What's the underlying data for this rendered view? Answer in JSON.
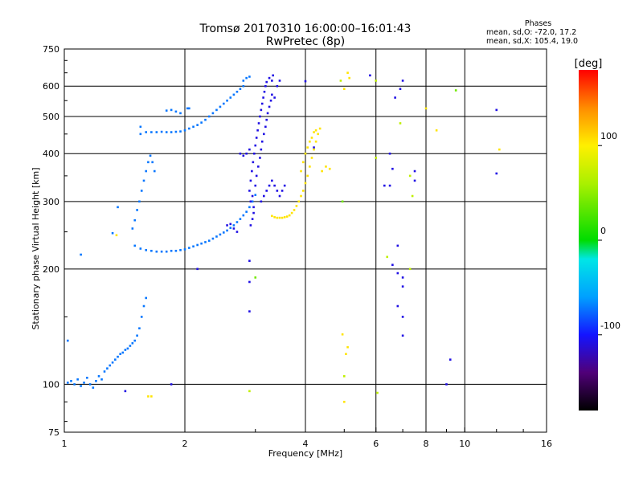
{
  "header": {
    "title_line1": "Tromsø 20170310 16:00:00–16:01:43",
    "title_line2": "RwPretec (8p)"
  },
  "phases": {
    "heading": "Phases",
    "line_o": "mean, sd,O: -72.0, 17.2",
    "line_x": "mean, sd,X: 105.4, 19.0"
  },
  "chart_data": {
    "type": "scatter",
    "xlabel": "Frequency [MHz]",
    "ylabel": "Stationary phase Virtual Height [km]",
    "x_scale": "log",
    "y_scale": "log",
    "xlim": [
      1,
      16
    ],
    "ylim": [
      75,
      750
    ],
    "x_ticks": [
      1,
      2,
      4,
      6,
      8,
      10,
      16
    ],
    "x_tick_labels": [
      "1",
      "2",
      "4",
      "6",
      "8",
      "10",
      "16"
    ],
    "y_ticks": [
      75,
      100,
      200,
      300,
      400,
      500,
      600,
      750
    ],
    "y_tick_labels": [
      "75",
      "100",
      "200",
      "300",
      "400",
      "500",
      "600",
      "750"
    ],
    "grid": true,
    "colorbar": {
      "label": "[deg]",
      "range": [
        -180,
        180
      ],
      "ticks": [
        100,
        0,
        -100
      ],
      "tick_labels": [
        "100",
        "0",
        "-100"
      ]
    },
    "series": [
      {
        "color_phase": -72,
        "points": [
          [
            1.02,
            101
          ],
          [
            1.04,
            102
          ],
          [
            1.06,
            100
          ],
          [
            1.08,
            103
          ],
          [
            1.1,
            99
          ],
          [
            1.12,
            101
          ],
          [
            1.14,
            104
          ],
          [
            1.16,
            100
          ],
          [
            1.18,
            98
          ],
          [
            1.2,
            102
          ],
          [
            1.22,
            105
          ],
          [
            1.24,
            103
          ],
          [
            1.26,
            108
          ],
          [
            1.28,
            110
          ],
          [
            1.3,
            112
          ],
          [
            1.32,
            114
          ],
          [
            1.34,
            116
          ],
          [
            1.36,
            118
          ],
          [
            1.38,
            120
          ],
          [
            1.4,
            121
          ],
          [
            1.42,
            123
          ],
          [
            1.44,
            124
          ],
          [
            1.46,
            126
          ],
          [
            1.48,
            128
          ],
          [
            1.5,
            130
          ],
          [
            1.52,
            134
          ],
          [
            1.54,
            140
          ],
          [
            1.56,
            150
          ],
          [
            1.58,
            160
          ],
          [
            1.6,
            168
          ],
          [
            1.02,
            130
          ],
          [
            1.1,
            218
          ],
          [
            1.32,
            248
          ],
          [
            1.36,
            290
          ],
          [
            1.5,
            230
          ],
          [
            1.55,
            226
          ],
          [
            1.6,
            224
          ],
          [
            1.65,
            223
          ],
          [
            1.7,
            222
          ],
          [
            1.75,
            222
          ],
          [
            1.8,
            222
          ],
          [
            1.85,
            223
          ],
          [
            1.9,
            223
          ],
          [
            1.95,
            224
          ],
          [
            2.0,
            225
          ],
          [
            2.05,
            227
          ],
          [
            2.1,
            229
          ],
          [
            2.15,
            231
          ],
          [
            2.2,
            233
          ],
          [
            2.25,
            235
          ],
          [
            2.3,
            237
          ],
          [
            2.35,
            240
          ],
          [
            2.4,
            243
          ],
          [
            2.45,
            246
          ],
          [
            2.5,
            249
          ],
          [
            2.55,
            252
          ],
          [
            2.6,
            256
          ],
          [
            2.65,
            260
          ],
          [
            2.7,
            265
          ],
          [
            2.75,
            270
          ],
          [
            2.8,
            276
          ],
          [
            2.85,
            282
          ],
          [
            2.9,
            290
          ],
          [
            2.95,
            300
          ],
          [
            3.0,
            312
          ],
          [
            1.48,
            255
          ],
          [
            1.5,
            268
          ],
          [
            1.52,
            285
          ],
          [
            1.54,
            300
          ],
          [
            1.56,
            320
          ],
          [
            1.58,
            340
          ],
          [
            1.6,
            360
          ],
          [
            1.62,
            380
          ],
          [
            1.64,
            395
          ],
          [
            1.66,
            380
          ],
          [
            1.68,
            360
          ],
          [
            1.55,
            450
          ],
          [
            1.6,
            455
          ],
          [
            1.65,
            455
          ],
          [
            1.7,
            455
          ],
          [
            1.75,
            456
          ],
          [
            1.8,
            455
          ],
          [
            1.85,
            455
          ],
          [
            1.9,
            456
          ],
          [
            1.95,
            457
          ],
          [
            2.0,
            460
          ],
          [
            2.05,
            465
          ],
          [
            2.1,
            470
          ],
          [
            2.15,
            475
          ],
          [
            2.2,
            482
          ],
          [
            2.25,
            490
          ],
          [
            2.3,
            500
          ],
          [
            2.35,
            510
          ],
          [
            2.4,
            520
          ],
          [
            2.45,
            530
          ],
          [
            2.5,
            540
          ],
          [
            2.55,
            550
          ],
          [
            2.6,
            560
          ],
          [
            2.65,
            570
          ],
          [
            2.7,
            580
          ],
          [
            2.75,
            590
          ],
          [
            2.8,
            600
          ],
          [
            1.55,
            470
          ],
          [
            1.9,
            515
          ],
          [
            1.85,
            520
          ],
          [
            1.95,
            510
          ],
          [
            1.8,
            518
          ],
          [
            2.03,
            525
          ],
          [
            2.05,
            525
          ],
          [
            2.8,
            620
          ],
          [
            2.85,
            630
          ],
          [
            2.9,
            635
          ]
        ]
      },
      {
        "color_phase": -108,
        "points": [
          [
            2.9,
            320
          ],
          [
            2.92,
            340
          ],
          [
            2.94,
            360
          ],
          [
            2.96,
            380
          ],
          [
            2.98,
            400
          ],
          [
            3.0,
            420
          ],
          [
            3.02,
            440
          ],
          [
            3.04,
            460
          ],
          [
            3.06,
            480
          ],
          [
            3.08,
            500
          ],
          [
            3.1,
            520
          ],
          [
            3.12,
            540
          ],
          [
            3.14,
            560
          ],
          [
            3.16,
            580
          ],
          [
            3.18,
            600
          ],
          [
            3.2,
            615
          ],
          [
            2.92,
            300
          ],
          [
            2.95,
            310
          ],
          [
            2.97,
            290
          ],
          [
            3.0,
            330
          ],
          [
            3.02,
            350
          ],
          [
            3.05,
            370
          ],
          [
            3.08,
            390
          ],
          [
            3.1,
            410
          ],
          [
            3.12,
            430
          ],
          [
            3.15,
            450
          ],
          [
            3.18,
            470
          ],
          [
            3.2,
            490
          ],
          [
            3.22,
            510
          ],
          [
            3.25,
            530
          ],
          [
            3.28,
            550
          ],
          [
            3.3,
            570
          ],
          [
            3.35,
            560
          ],
          [
            3.4,
            600
          ],
          [
            3.45,
            620
          ],
          [
            3.3,
            620
          ],
          [
            3.32,
            640
          ],
          [
            3.25,
            630
          ],
          [
            3.1,
            300
          ],
          [
            3.15,
            310
          ],
          [
            3.2,
            320
          ],
          [
            3.25,
            330
          ],
          [
            3.3,
            340
          ],
          [
            3.35,
            330
          ],
          [
            3.4,
            320
          ],
          [
            3.45,
            310
          ],
          [
            3.5,
            320
          ],
          [
            3.55,
            330
          ],
          [
            2.75,
            400
          ],
          [
            2.8,
            395
          ],
          [
            2.85,
            400
          ],
          [
            2.9,
            410
          ],
          [
            2.92,
            260
          ],
          [
            2.95,
            270
          ],
          [
            2.97,
            280
          ],
          [
            2.55,
            260
          ],
          [
            2.6,
            262
          ],
          [
            2.65,
            255
          ],
          [
            2.7,
            250
          ],
          [
            4.0,
            618
          ],
          [
            4.2,
            415
          ],
          [
            5.8,
            640
          ],
          [
            6.3,
            330
          ],
          [
            6.5,
            330
          ],
          [
            6.7,
            560
          ],
          [
            6.9,
            590
          ],
          [
            7.0,
            620
          ],
          [
            6.5,
            400
          ],
          [
            6.6,
            365
          ],
          [
            7.5,
            360
          ],
          [
            7.5,
            340
          ],
          [
            6.8,
            230
          ],
          [
            6.6,
            205
          ],
          [
            6.8,
            195
          ],
          [
            7.0,
            190
          ],
          [
            7.0,
            180
          ],
          [
            6.8,
            160
          ],
          [
            7.0,
            150
          ],
          [
            7.0,
            134
          ],
          [
            9.2,
            116
          ],
          [
            9.0,
            100
          ],
          [
            12.0,
            520
          ],
          [
            12.0,
            355
          ],
          [
            2.9,
            185
          ],
          [
            2.9,
            155
          ],
          [
            2.9,
            210
          ],
          [
            2.15,
            200
          ],
          [
            1.85,
            100
          ],
          [
            1.42,
            96
          ]
        ]
      },
      {
        "color_phase": 105,
        "points": [
          [
            3.3,
            275
          ],
          [
            3.35,
            273
          ],
          [
            3.4,
            272
          ],
          [
            3.45,
            272
          ],
          [
            3.5,
            272
          ],
          [
            3.55,
            273
          ],
          [
            3.6,
            274
          ],
          [
            3.65,
            276
          ],
          [
            3.7,
            280
          ],
          [
            3.75,
            285
          ],
          [
            3.8,
            292
          ],
          [
            3.85,
            300
          ],
          [
            3.9,
            310
          ],
          [
            3.95,
            320
          ],
          [
            4.0,
            335
          ],
          [
            4.05,
            350
          ],
          [
            4.1,
            370
          ],
          [
            4.15,
            390
          ],
          [
            4.2,
            410
          ],
          [
            4.25,
            430
          ],
          [
            4.3,
            450
          ],
          [
            4.35,
            465
          ],
          [
            3.9,
            360
          ],
          [
            3.95,
            380
          ],
          [
            4.0,
            400
          ],
          [
            4.05,
            415
          ],
          [
            4.1,
            430
          ],
          [
            4.15,
            440
          ],
          [
            4.2,
            455
          ],
          [
            4.25,
            460
          ],
          [
            4.4,
            360
          ],
          [
            4.5,
            370
          ],
          [
            4.6,
            365
          ],
          [
            1.35,
            245
          ],
          [
            1.62,
            93
          ],
          [
            1.65,
            93
          ],
          [
            4.95,
            135
          ],
          [
            5.0,
            90
          ],
          [
            5.1,
            125
          ],
          [
            5.05,
            120
          ],
          [
            8.0,
            525
          ],
          [
            8.5,
            460
          ],
          [
            5.0,
            590
          ],
          [
            5.1,
            650
          ],
          [
            5.15,
            630
          ],
          [
            12.2,
            410
          ]
        ]
      },
      {
        "color_phase": 70,
        "points": [
          [
            4.9,
            620
          ],
          [
            5.0,
            105
          ],
          [
            6.0,
            620
          ],
          [
            6.9,
            480
          ],
          [
            7.4,
            310
          ],
          [
            7.3,
            350
          ],
          [
            6.4,
            215
          ],
          [
            7.3,
            200
          ],
          [
            2.9,
            96
          ],
          [
            6.05,
            95
          ],
          [
            6.0,
            390
          ]
        ]
      },
      {
        "color_phase": 40,
        "points": [
          [
            3.0,
            190
          ],
          [
            9.5,
            585
          ],
          [
            4.95,
            300
          ]
        ]
      }
    ]
  }
}
